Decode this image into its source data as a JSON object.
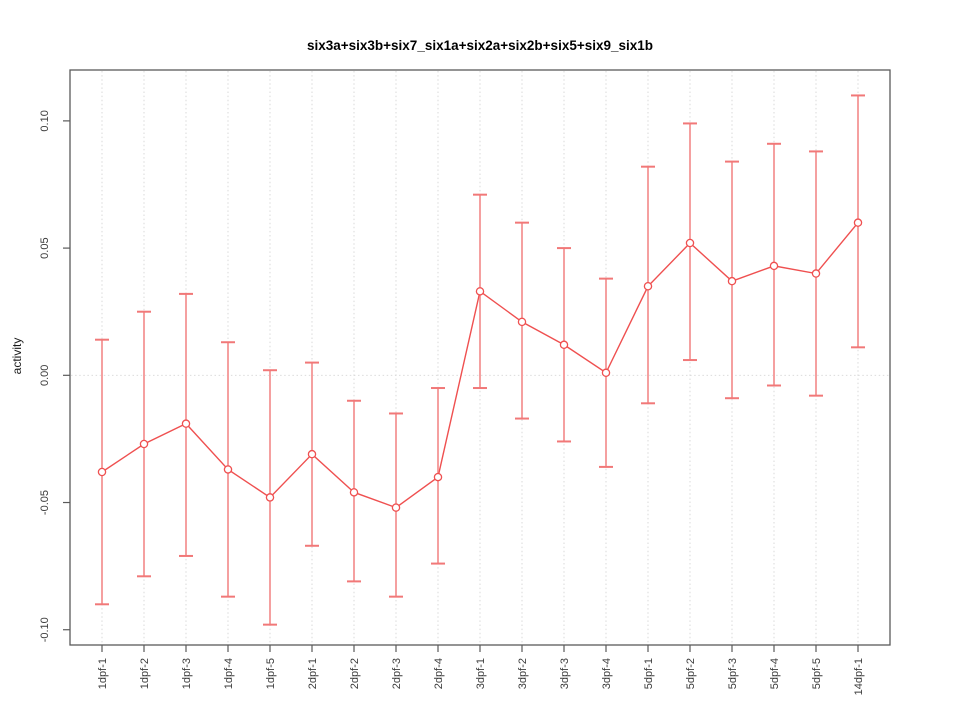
{
  "page": {
    "background": "#ffffff"
  },
  "chart_data": {
    "type": "line",
    "variant": "points-with-error-bars",
    "title": "six3a+six3b+six7_six1a+six2a+six2b+six5+six9_six1b",
    "xlabel": "",
    "ylabel": "activity",
    "categories": [
      "1dpf-1",
      "1dpf-2",
      "1dpf-3",
      "1dpf-4",
      "1dpf-5",
      "2dpf-1",
      "2dpf-2",
      "2dpf-3",
      "2dpf-4",
      "3dpf-1",
      "3dpf-2",
      "3dpf-3",
      "3dpf-4",
      "5dpf-1",
      "5dpf-2",
      "5dpf-3",
      "5dpf-4",
      "5dpf-5",
      "14dpf-1"
    ],
    "series": [
      {
        "name": "activity",
        "values": [
          -0.038,
          -0.027,
          -0.019,
          -0.037,
          -0.048,
          -0.031,
          -0.046,
          -0.052,
          -0.04,
          0.033,
          0.021,
          0.012,
          0.001,
          0.035,
          0.052,
          0.037,
          0.043,
          0.04,
          0.06
        ],
        "upper": [
          0.014,
          0.025,
          0.032,
          0.013,
          0.002,
          0.005,
          -0.01,
          -0.015,
          -0.005,
          0.071,
          0.06,
          0.05,
          0.038,
          0.082,
          0.099,
          0.084,
          0.091,
          0.088,
          0.11
        ],
        "lower": [
          -0.09,
          -0.079,
          -0.071,
          -0.087,
          -0.098,
          -0.067,
          -0.081,
          -0.087,
          -0.074,
          -0.005,
          -0.017,
          -0.026,
          -0.036,
          -0.011,
          0.006,
          -0.009,
          -0.004,
          -0.008,
          0.011
        ]
      }
    ],
    "ylim": [
      -0.106,
      0.12
    ],
    "ytick_values": [
      0.1,
      0.05,
      0.0,
      -0.05,
      -0.1
    ],
    "ytick_labels": [
      "0.10",
      "0.05",
      "0.00",
      "-0.05",
      "-0.10"
    ],
    "grid": {
      "vertical_dotted_per_category": true,
      "horizontal_dotted_zero_line": true
    },
    "legend": "none",
    "marker": "open-circle",
    "colors": {
      "series_line": "#ef5050",
      "marker_stroke": "#ef5050",
      "marker_fill": "#ffffff",
      "error_bar": "#f5a0a0",
      "error_cap": "#f17878",
      "grid": "#d6d6d6",
      "axis": "#5a5a5a",
      "title": "#000000",
      "tick_text": "#3c3c3c"
    }
  }
}
